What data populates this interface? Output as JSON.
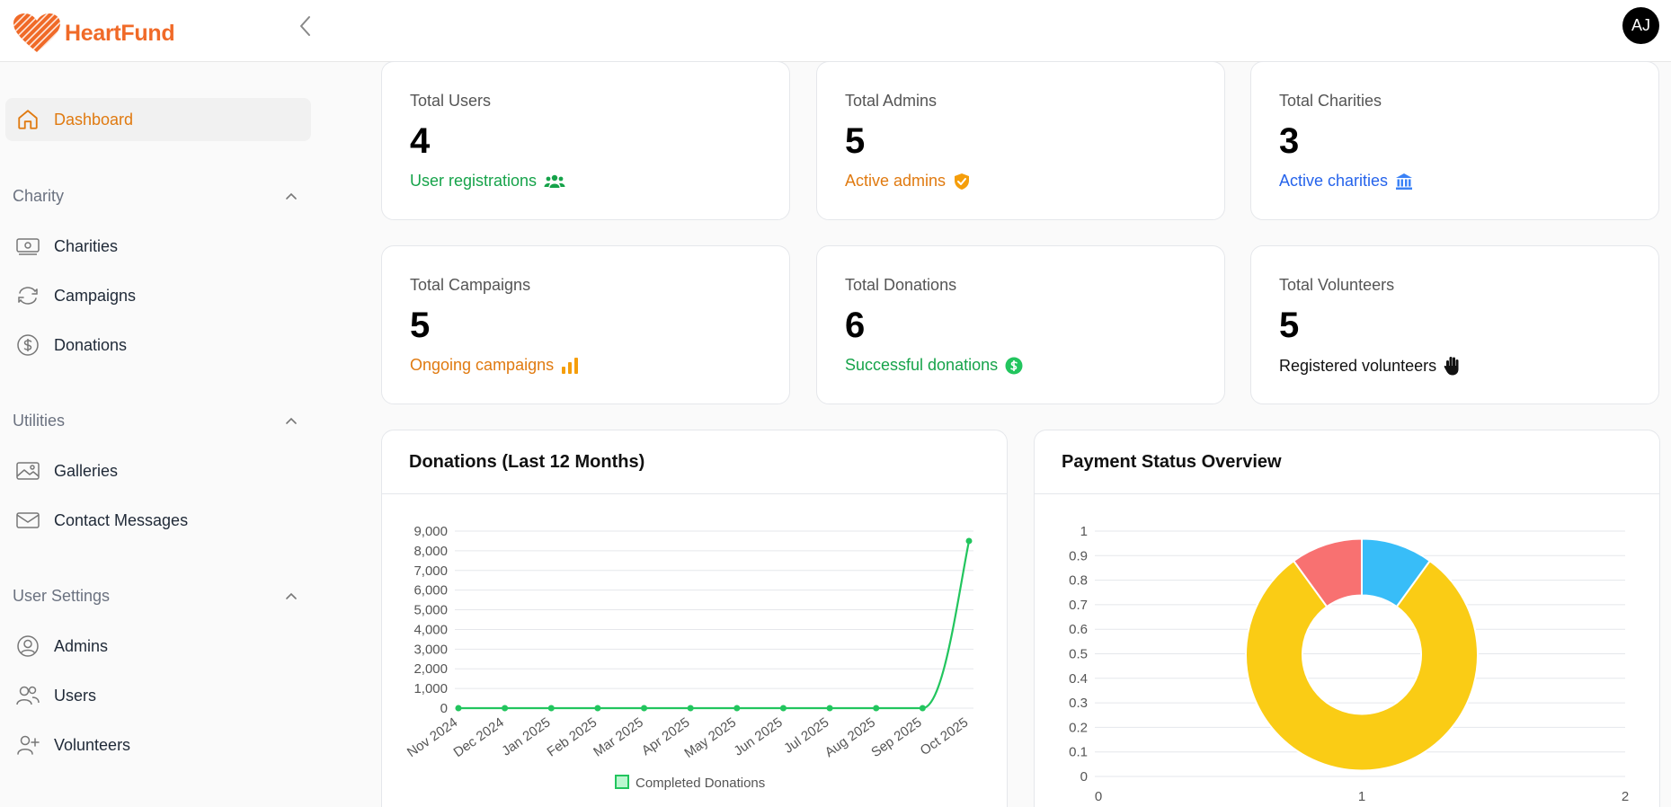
{
  "brand": {
    "name": "HeartFund",
    "color": "#f06a28"
  },
  "header": {
    "avatar_initials": "AJ",
    "collapse_icon": "chevron-left-icon"
  },
  "sidebar": {
    "dashboard": {
      "label": "Dashboard",
      "icon": "home-icon",
      "active": true
    },
    "sections": [
      {
        "title": "Charity",
        "items": [
          {
            "label": "Charities",
            "icon": "banknote-icon"
          },
          {
            "label": "Campaigns",
            "icon": "refresh-icon"
          },
          {
            "label": "Donations",
            "icon": "dollar-circle-icon"
          }
        ]
      },
      {
        "title": "Utilities",
        "items": [
          {
            "label": "Galleries",
            "icon": "image-icon"
          },
          {
            "label": "Contact Messages",
            "icon": "mail-icon"
          }
        ]
      },
      {
        "title": "User Settings",
        "items": [
          {
            "label": "Admins",
            "icon": "user-circle-icon"
          },
          {
            "label": "Users",
            "icon": "users-icon"
          },
          {
            "label": "Volunteers",
            "icon": "user-plus-icon"
          }
        ]
      }
    ]
  },
  "stats": [
    {
      "title": "Total Users",
      "value": "4",
      "sub": "User registrations",
      "icon": "users-group-icon",
      "color": "#16a34a"
    },
    {
      "title": "Total Admins",
      "value": "5",
      "sub": "Active admins",
      "icon": "shield-check-icon",
      "color": "#e07a10"
    },
    {
      "title": "Total Charities",
      "value": "3",
      "sub": "Active charities",
      "icon": "bank-icon",
      "color": "#2563eb"
    },
    {
      "title": "Total Campaigns",
      "value": "5",
      "sub": "Ongoing campaigns",
      "icon": "bar-chart-icon",
      "color": "#e07a10"
    },
    {
      "title": "Total Donations",
      "value": "6",
      "sub": "Successful donations",
      "icon": "dollar-circle-icon",
      "color": "#16a34a"
    },
    {
      "title": "Total Volunteers",
      "value": "5",
      "sub": "Registered volunteers",
      "icon": "hand-icon",
      "color": "#111111"
    }
  ],
  "chart_data": [
    {
      "type": "line",
      "title": "Donations (Last 12 Months)",
      "categories": [
        "Nov 2024",
        "Dec 2024",
        "Jan 2025",
        "Feb 2025",
        "Mar 2025",
        "Apr 2025",
        "May 2025",
        "Jun 2025",
        "Jul 2025",
        "Aug 2025",
        "Sep 2025",
        "Oct 2025"
      ],
      "series": [
        {
          "name": "Completed Donations",
          "color": "#22c55e",
          "values": [
            0,
            0,
            0,
            0,
            0,
            0,
            0,
            0,
            0,
            0,
            0,
            8500
          ]
        }
      ],
      "ylim": [
        0,
        9000
      ],
      "yticks": [
        "0",
        "1,000",
        "2,000",
        "3,000",
        "4,000",
        "5,000",
        "6,000",
        "7,000",
        "8,000",
        "9,000"
      ],
      "legend": "bottom",
      "grid": true
    },
    {
      "type": "pie",
      "title": "Payment Status Overview",
      "slices": [
        {
          "value": 1,
          "color": "#38bdf8"
        },
        {
          "value": 8,
          "color": "#facc15"
        },
        {
          "value": 1,
          "color": "#f87171"
        }
      ],
      "yticks": [
        "0",
        "0.1",
        "0.2",
        "0.3",
        "0.4",
        "0.5",
        "0.6",
        "0.7",
        "0.8",
        "0.9",
        "1"
      ],
      "xticks": [
        "0",
        "1",
        "2"
      ],
      "grid": true
    }
  ]
}
